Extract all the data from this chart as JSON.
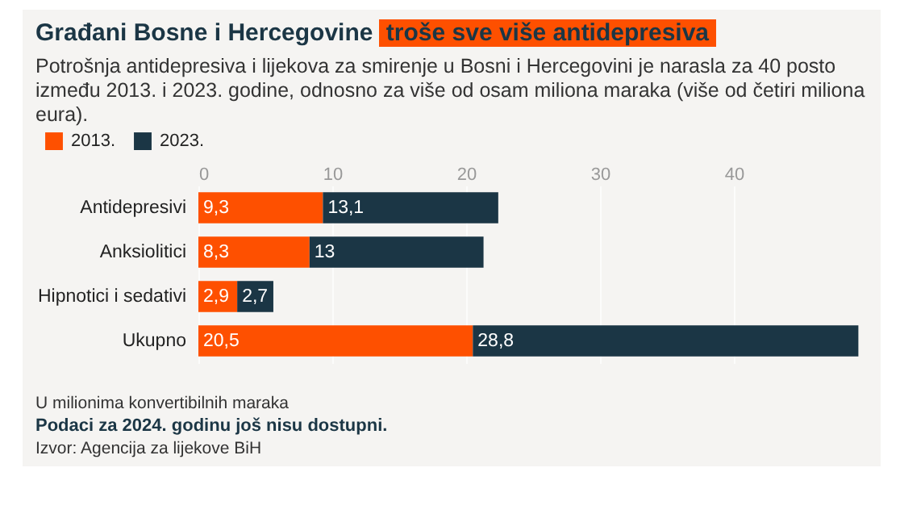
{
  "chart_data": {
    "type": "bar",
    "orientation": "horizontal",
    "stacked": true,
    "title": "Građani Bosne i Hercegovine troše sve više antidepresiva",
    "subtitle": "Potrošnja antidepresiva i lijekova za smirenje u Bosni i Hercegovini je narasla za 40 posto između 2013. i 2023. godine, odnosno za više od osam miliona maraka (više od četiri miliona eura).",
    "categories": [
      "Antidepresivi",
      "Anksiolitici",
      "Hipnotici i sedativi",
      "Ukupno"
    ],
    "series": [
      {
        "name": "2013.",
        "color": "#fe5000",
        "values": [
          9.3,
          8.3,
          2.9,
          20.5
        ],
        "value_labels": [
          "9,3",
          "8,3",
          "2,9",
          "20,5"
        ]
      },
      {
        "name": "2023.",
        "color": "#1b3645",
        "values": [
          13.1,
          13,
          2.7,
          28.8
        ],
        "value_labels": [
          "13,1",
          "13",
          "2,7",
          "28,8"
        ]
      }
    ],
    "xlim": [
      0,
      50
    ],
    "xticks": [
      0,
      10,
      20,
      30,
      40
    ],
    "grid": "x",
    "legend": "top left",
    "annotations": [
      "U milionima konvertibilnih maraka",
      "Podaci za 2024. godinu još nisu dostupni.",
      "Izvor: Agencija za lijekove BiH"
    ]
  }
}
